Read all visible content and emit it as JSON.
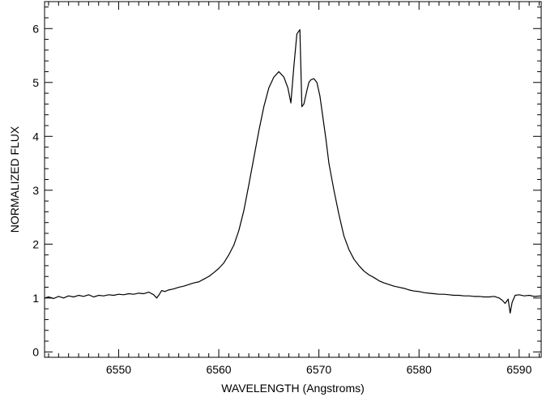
{
  "chart_data": {
    "type": "line",
    "xlabel": "WAVELENGTH (Angstroms)",
    "ylabel": "NORMALIZED FLUX",
    "xlim": [
      6542.6,
      6592.2
    ],
    "ylim": [
      -0.1,
      6.5
    ],
    "xticks": [
      6550,
      6560,
      6570,
      6580,
      6590
    ],
    "yticks": [
      0,
      1,
      2,
      3,
      4,
      5,
      6
    ],
    "xminor_step": 1,
    "yminor_step": 0.2,
    "grid": false,
    "line_color": "#000000",
    "series": [
      {
        "x": [
          6542.6,
          6543.0,
          6543.5,
          6544.0,
          6544.5,
          6545.0,
          6545.5,
          6546.0,
          6546.5,
          6547.0,
          6547.5,
          6548.0,
          6548.5,
          6549.0,
          6549.5,
          6550.0,
          6550.5,
          6551.0,
          6551.5,
          6552.0,
          6552.5,
          6553.0,
          6553.5,
          6553.8,
          6554.0,
          6554.3,
          6554.6,
          6555.0,
          6555.5,
          6556.0,
          6556.5,
          6557.0,
          6557.5,
          6558.0,
          6558.5,
          6559.0,
          6559.5,
          6560.0,
          6560.5,
          6561.0,
          6561.5,
          6562.0,
          6562.5,
          6563.0,
          6563.5,
          6564.0,
          6564.5,
          6565.0,
          6565.5,
          6566.0,
          6566.5,
          6566.9,
          6567.2,
          6567.5,
          6567.8,
          6568.1,
          6568.3,
          6568.5,
          6568.8,
          6569.0,
          6569.2,
          6569.5,
          6569.8,
          6570.1,
          6570.4,
          6570.7,
          6571.0,
          6571.5,
          6572.0,
          6572.5,
          6573.0,
          6573.5,
          6574.0,
          6574.5,
          6575.0,
          6575.5,
          6576.0,
          6576.5,
          6577.0,
          6577.5,
          6578.0,
          6578.5,
          6579.0,
          6579.5,
          6580.0,
          6580.5,
          6581.0,
          6581.5,
          6582.0,
          6582.5,
          6583.0,
          6583.5,
          6584.0,
          6584.5,
          6585.0,
          6585.5,
          6586.0,
          6586.5,
          6587.0,
          6587.5,
          6588.0,
          6588.3,
          6588.6,
          6588.9,
          6589.1,
          6589.3,
          6589.6,
          6590.0,
          6590.5,
          6591.0,
          6591.5,
          6592.2
        ],
        "y": [
          1.0,
          1.02,
          0.99,
          1.03,
          1.0,
          1.04,
          1.02,
          1.05,
          1.03,
          1.06,
          1.02,
          1.05,
          1.04,
          1.06,
          1.05,
          1.07,
          1.06,
          1.08,
          1.07,
          1.09,
          1.08,
          1.11,
          1.06,
          1.0,
          1.05,
          1.14,
          1.12,
          1.15,
          1.17,
          1.2,
          1.22,
          1.25,
          1.28,
          1.3,
          1.35,
          1.4,
          1.47,
          1.55,
          1.65,
          1.8,
          1.98,
          2.25,
          2.62,
          3.1,
          3.6,
          4.1,
          4.55,
          4.9,
          5.1,
          5.2,
          5.1,
          4.9,
          4.62,
          5.3,
          5.9,
          5.98,
          4.55,
          4.6,
          4.85,
          5.0,
          5.05,
          5.07,
          5.0,
          4.75,
          4.35,
          3.95,
          3.5,
          3.0,
          2.55,
          2.15,
          1.9,
          1.72,
          1.6,
          1.5,
          1.43,
          1.38,
          1.32,
          1.28,
          1.25,
          1.22,
          1.2,
          1.18,
          1.15,
          1.13,
          1.12,
          1.1,
          1.09,
          1.08,
          1.07,
          1.07,
          1.06,
          1.05,
          1.05,
          1.04,
          1.04,
          1.03,
          1.03,
          1.02,
          1.02,
          1.03,
          1.0,
          0.96,
          0.9,
          0.98,
          0.72,
          0.92,
          1.05,
          1.06,
          1.04,
          1.05,
          1.03,
          1.04
        ]
      }
    ]
  }
}
